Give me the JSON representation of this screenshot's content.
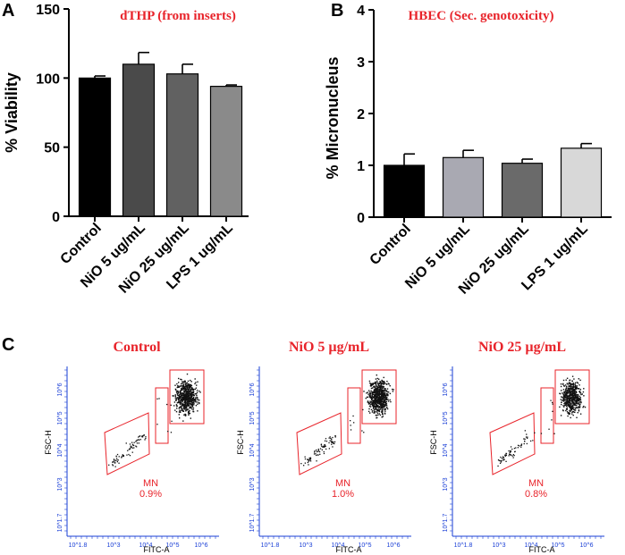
{
  "panels": {
    "a": "A",
    "b": "B",
    "c": "C"
  },
  "chart_data": [
    {
      "type": "bar",
      "title": "dTHP (from inserts)",
      "xlabel": "",
      "ylabel": "% Viability",
      "categories": [
        "Control",
        "NiO 5 ug/mL",
        "NiO 25 ug/mL",
        "LPS 1 ug/mL"
      ],
      "values": [
        100,
        110,
        103,
        94
      ],
      "errors": [
        1.5,
        8.5,
        7,
        1
      ],
      "ylim": [
        0,
        150
      ],
      "yticks": [
        0,
        50,
        100,
        150
      ],
      "colors": [
        "#000000",
        "#4a4a4a",
        "#616161",
        "#8a8a8a"
      ]
    },
    {
      "type": "bar",
      "title": "HBEC (Sec. genotoxicity)",
      "xlabel": "",
      "ylabel": "% Micronucleus",
      "categories": [
        "Control",
        "NiO 5 ug/mL",
        "NiO 25 ug/mL",
        "LPS 1 ug/mL"
      ],
      "values": [
        1.0,
        1.15,
        1.04,
        1.33
      ],
      "errors": [
        0.22,
        0.14,
        0.08,
        0.09
      ],
      "ylim": [
        0,
        4
      ],
      "yticks": [
        0,
        1,
        2,
        3,
        4
      ],
      "colors": [
        "#000000",
        "#a9a9b2",
        "#6a6a6a",
        "#d8d8d8"
      ]
    },
    {
      "type": "scatter",
      "flow_plots": [
        {
          "title": "Control",
          "mn_label": "MN",
          "mn_value": "0.9%",
          "density": 1.0
        },
        {
          "title": "NiO 5 µg/mL",
          "mn_label": "MN",
          "mn_value": "1.0%",
          "density": 1.1
        },
        {
          "title": "NiO 25 µg/mL",
          "mn_label": "MN",
          "mn_value": "0.8%",
          "density": 0.9
        }
      ],
      "xlabel": "FITC-A",
      "ylabel": "FSC-H",
      "xticks": [
        "10^1.8",
        "10^3",
        "10^4",
        "10^5",
        "10^6"
      ],
      "yticks": [
        "10^1.7",
        "10^3",
        "10^4",
        "10^5",
        "10^6"
      ]
    }
  ]
}
